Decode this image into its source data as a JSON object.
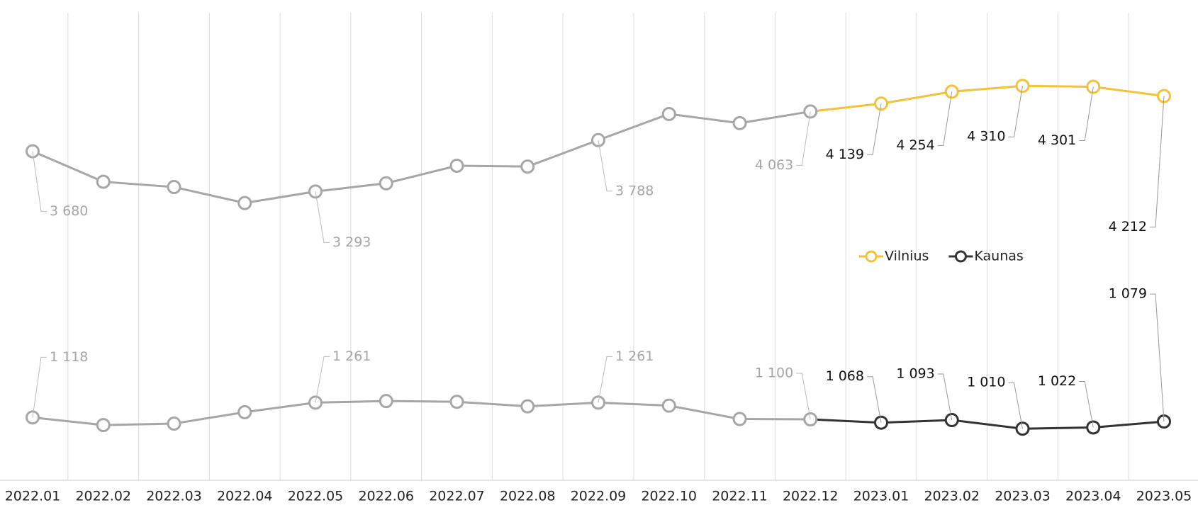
{
  "chart_data": {
    "type": "line",
    "categories": [
      "2022.01",
      "2022.02",
      "2022.03",
      "2022.04",
      "2022.05",
      "2022.06",
      "2022.07",
      "2022.08",
      "2022.09",
      "2022.10",
      "2022.11",
      "2022.12",
      "2023.01",
      "2023.02",
      "2023.03",
      "2023.04",
      "2023.05"
    ],
    "highlight_from": "2023.01",
    "history_color": "#a6a6a6",
    "series": [
      {
        "name": "Vilnius",
        "color": "#f2c23c",
        "values": [
          3680,
          3387,
          3336,
          3182,
          3293,
          3372,
          3541,
          3533,
          3788,
          4039,
          3951,
          4063,
          4139,
          4254,
          4310,
          4301,
          4212
        ],
        "value_labels": [
          "3 680",
          null,
          null,
          null,
          "3 293",
          null,
          null,
          null,
          "3 788",
          null,
          null,
          "4 063",
          "4 139",
          "4 254",
          "4 310",
          "4 301",
          "4 212"
        ]
      },
      {
        "name": "Kaunas",
        "color": "#333333",
        "values": [
          1118,
          1045,
          1059,
          1169,
          1261,
          1276,
          1269,
          1225,
          1261,
          1232,
          1103,
          1100,
          1068,
          1093,
          1010,
          1022,
          1079
        ],
        "value_labels": [
          "1 118",
          null,
          null,
          null,
          "1 261",
          null,
          null,
          null,
          "1 261",
          null,
          null,
          "1 100",
          "1 068",
          "1 093",
          "1 010",
          "1 022",
          "1 079"
        ]
      }
    ],
    "ylim": [
      500,
      5000
    ]
  }
}
